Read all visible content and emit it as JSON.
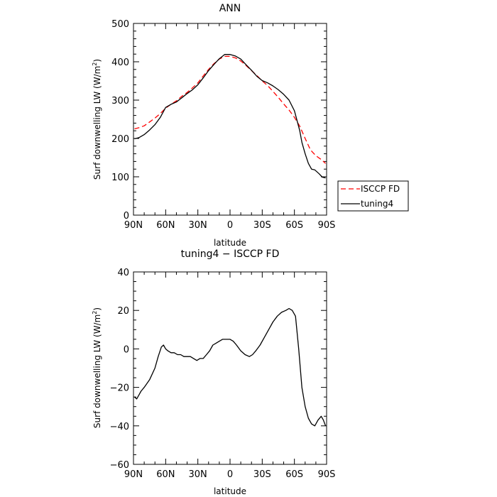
{
  "chart_data": [
    {
      "type": "line",
      "title": "ANN",
      "xlabel": "latitude",
      "ylabel": "Surf downwelling LW (W/m",
      "ylabel_sup": "2",
      "ylabel_close": ")",
      "xlim": [
        90,
        -90
      ],
      "ylim": [
        0,
        500
      ],
      "xticks": [
        90,
        60,
        30,
        0,
        -30,
        -60,
        -90
      ],
      "xtick_labels": [
        "90N",
        "60N",
        "30N",
        "0",
        "30S",
        "60S",
        "90S"
      ],
      "yticks": [
        0,
        100,
        200,
        300,
        400,
        500
      ],
      "ytick_labels": [
        "0",
        "100",
        "200",
        "300",
        "400",
        "500"
      ],
      "legend_position": "right-bottom outside",
      "series": [
        {
          "name": "ISCCP FD",
          "color": "#ff0000",
          "dash": "dashed",
          "x": [
            89,
            85,
            80,
            75,
            70,
            65,
            60,
            55,
            50,
            45,
            40,
            35,
            30,
            25,
            20,
            15,
            10,
            5,
            0,
            -5,
            -10,
            -15,
            -20,
            -25,
            -30,
            -35,
            -40,
            -45,
            -50,
            -55,
            -60,
            -65,
            -70,
            -75,
            -80,
            -85,
            -89
          ],
          "y": [
            225,
            228,
            233,
            243,
            253,
            265,
            279,
            289,
            298,
            310,
            320,
            332,
            345,
            363,
            380,
            395,
            407,
            414,
            414,
            410,
            402,
            390,
            377,
            364,
            350,
            338,
            323,
            307,
            290,
            274,
            255,
            232,
            200,
            170,
            155,
            145,
            135
          ]
        },
        {
          "name": "tuning4",
          "color": "#000000",
          "dash": "solid",
          "x": [
            89,
            85,
            80,
            75,
            70,
            65,
            60,
            55,
            50,
            45,
            40,
            35,
            30,
            25,
            20,
            15,
            10,
            5,
            0,
            -5,
            -10,
            -15,
            -20,
            -25,
            -30,
            -35,
            -40,
            -45,
            -50,
            -55,
            -60,
            -65,
            -67,
            -70,
            -73,
            -76,
            -79,
            -83,
            -86,
            -89
          ],
          "y": [
            199,
            202,
            210,
            222,
            236,
            255,
            281,
            289,
            295,
            306,
            317,
            327,
            340,
            358,
            377,
            393,
            408,
            419,
            419,
            415,
            407,
            392,
            378,
            362,
            351,
            345,
            337,
            327,
            315,
            300,
            272,
            220,
            190,
            160,
            135,
            120,
            118,
            108,
            99,
            97
          ]
        }
      ]
    },
    {
      "type": "line",
      "title": "tuning4 − ISCCP FD",
      "xlabel": "latitude",
      "ylabel": "Surf downwelling LW (W/m",
      "ylabel_sup": "2",
      "ylabel_close": ")",
      "xlim": [
        90,
        -90
      ],
      "ylim": [
        -60,
        40
      ],
      "xticks": [
        90,
        60,
        30,
        0,
        -30,
        -60,
        -90
      ],
      "xtick_labels": [
        "90N",
        "60N",
        "30N",
        "0",
        "30S",
        "60S",
        "90S"
      ],
      "yticks": [
        -60,
        -40,
        -20,
        0,
        20,
        40
      ],
      "ytick_labels": [
        "−60",
        "−40",
        "−20",
        "0",
        "20",
        "40"
      ],
      "series": [
        {
          "name": "",
          "color": "#000000",
          "dash": "solid",
          "x": [
            89,
            87,
            85,
            83,
            80,
            75,
            70,
            67,
            64,
            62,
            60,
            58,
            55,
            52,
            49,
            46,
            43,
            40,
            37,
            34,
            31,
            28,
            25,
            22,
            19,
            16,
            13,
            10,
            7,
            4,
            0,
            -3,
            -6,
            -10,
            -14,
            -18,
            -21,
            -24,
            -28,
            -32,
            -36,
            -40,
            -44,
            -48,
            -52,
            -55,
            -58,
            -61,
            -64,
            -67,
            -70,
            -73,
            -76,
            -79,
            -82,
            -85,
            -87,
            -89
          ],
          "y": [
            -25,
            -26,
            -24,
            -22,
            -20,
            -16,
            -10,
            -4,
            1,
            2,
            0,
            -1,
            -2,
            -2,
            -3,
            -3,
            -4,
            -4,
            -4,
            -5,
            -6,
            -5,
            -5,
            -3,
            -1,
            2,
            3,
            4,
            5,
            5,
            5,
            4,
            2,
            -1,
            -3,
            -4,
            -3,
            -1,
            2,
            6,
            10,
            14,
            17,
            19,
            20,
            21,
            20,
            17,
            0,
            -20,
            -30,
            -36,
            -39,
            -40,
            -37,
            -35,
            -37,
            -40
          ]
        }
      ]
    }
  ]
}
